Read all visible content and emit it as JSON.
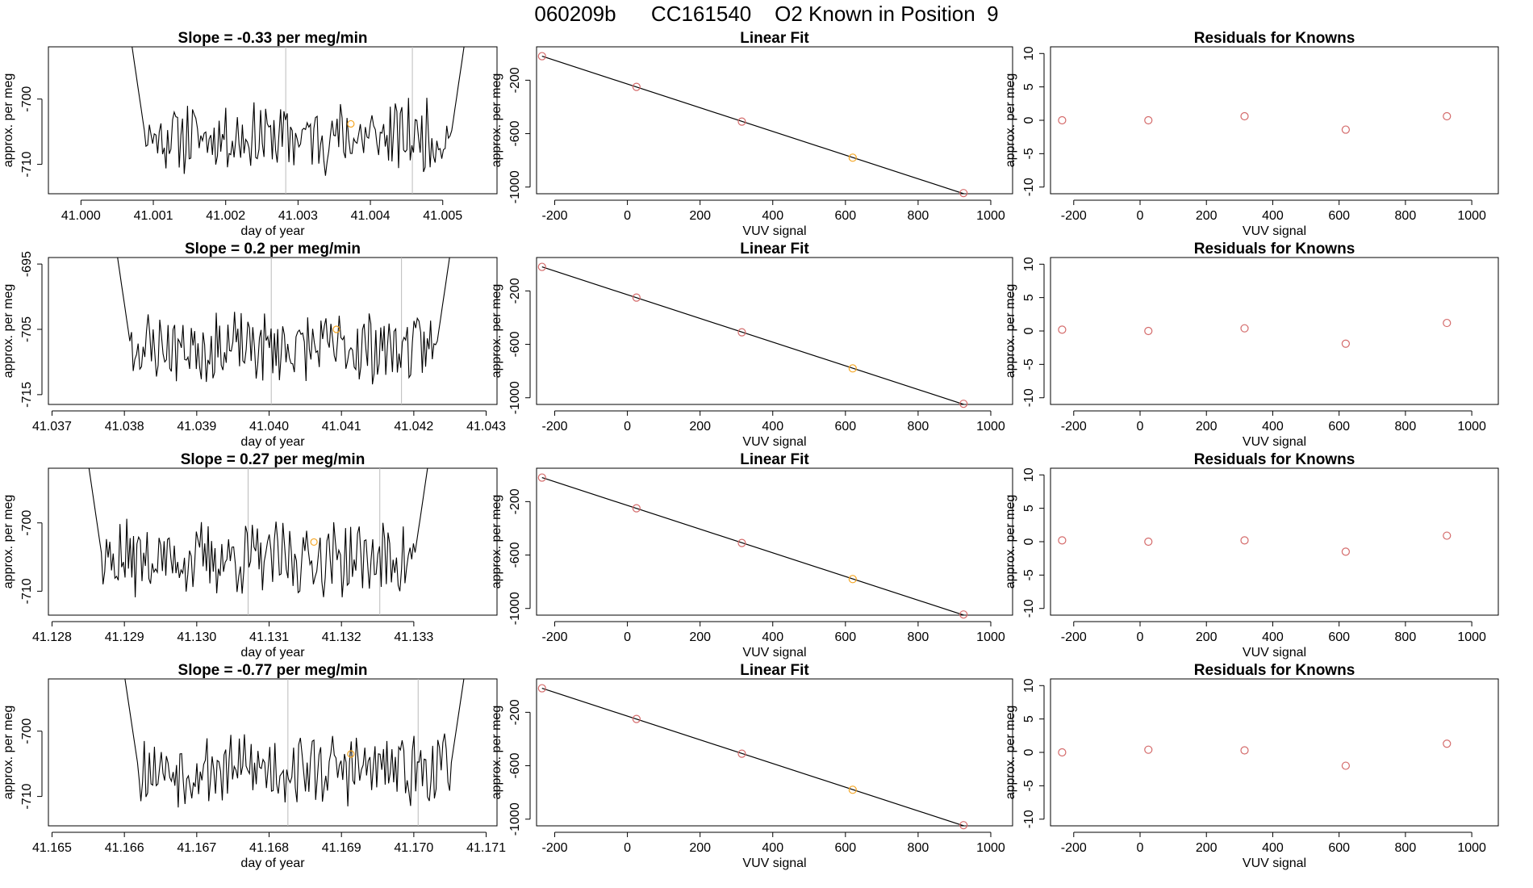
{
  "page": {
    "title": "060209b      CC161540    O2 Known in Position  9"
  },
  "colors": {
    "trace": "#000000",
    "known_point": "#d46a6a",
    "sample_point": "#f5a623",
    "vline": "#bbbbbb",
    "fit_line": "#000000"
  },
  "chart_data": [
    {
      "type": "line",
      "row": 0,
      "title": "Slope =  -0.33  per meg/min",
      "xlabel": "day of year",
      "ylabel": "approx. per meg",
      "xlim": [
        40.99955,
        41.00575
      ],
      "ylim": [
        -714.5,
        -692
      ],
      "xticks": [
        "41.000",
        "41.001",
        "41.002",
        "41.003",
        "41.004",
        "41.005"
      ],
      "xtick_values": [
        41.0,
        41.001,
        41.002,
        41.003,
        41.004,
        41.005
      ],
      "yticks": [
        "-700",
        "-710"
      ],
      "ytick_values": [
        -700,
        -710
      ],
      "x_start": 41.0006,
      "x_end": 41.0054,
      "vlines": [
        41.00283,
        41.00458
      ],
      "marker": {
        "x": 41.00373,
        "y": -703.8
      },
      "seed": 11
    },
    {
      "type": "line",
      "row": 1,
      "title": "Slope =  0.2  per meg/min",
      "xlabel": "day of year",
      "ylabel": "approx. per meg",
      "xlim": [
        41.03695,
        41.04315
      ],
      "ylim": [
        -716.5,
        -694
      ],
      "xticks": [
        "41.037",
        "41.038",
        "41.039",
        "41.040",
        "41.041",
        "41.042",
        "41.043"
      ],
      "xtick_values": [
        41.037,
        41.038,
        41.039,
        41.04,
        41.041,
        41.042,
        41.043
      ],
      "yticks": [
        "-695",
        "-705",
        "-715"
      ],
      "ytick_values": [
        -695,
        -705,
        -715
      ],
      "x_start": 41.0378,
      "x_end": 41.0426,
      "vlines": [
        41.04003,
        41.04183
      ],
      "marker": {
        "x": 41.04093,
        "y": -705.0
      },
      "seed": 23
    },
    {
      "type": "line",
      "row": 2,
      "title": "Slope =  0.27  per meg/min",
      "xlabel": "day of year",
      "ylabel": "approx. per meg",
      "xlim": [
        41.12795,
        41.13415
      ],
      "ylim": [
        -713.5,
        -692
      ],
      "xticks": [
        "41.128",
        "41.129",
        "41.130",
        "41.131",
        "41.132",
        "41.133"
      ],
      "xtick_values": [
        41.128,
        41.129,
        41.13,
        41.131,
        41.132,
        41.133
      ],
      "yticks": [
        "-700",
        "-710"
      ],
      "ytick_values": [
        -700,
        -710
      ],
      "x_start": 41.1284,
      "x_end": 41.1333,
      "vlines": [
        41.13071,
        41.13253
      ],
      "marker": {
        "x": 41.13162,
        "y": -702.8
      },
      "seed": 37
    },
    {
      "type": "line",
      "row": 3,
      "title": "Slope =  -0.77  per meg/min",
      "xlabel": "day of year",
      "ylabel": "approx. per meg",
      "xlim": [
        41.16495,
        41.17115
      ],
      "ylim": [
        -714.5,
        -692
      ],
      "xticks": [
        "41.165",
        "41.166",
        "41.167",
        "41.168",
        "41.169",
        "41.170",
        "41.171"
      ],
      "xtick_values": [
        41.165,
        41.166,
        41.167,
        41.168,
        41.169,
        41.17,
        41.171
      ],
      "yticks": [
        "-700",
        "-710"
      ],
      "ytick_values": [
        -700,
        -710
      ],
      "x_start": 41.1659,
      "x_end": 41.1708,
      "vlines": [
        41.16826,
        41.17006
      ],
      "marker": {
        "x": 41.16913,
        "y": -703.5
      },
      "seed": 53
    },
    {
      "type": "scatter",
      "row": 0,
      "title": "Linear Fit",
      "xlabel": "VUV signal",
      "ylabel": "approx. per meg",
      "xlim": [
        -250,
        1060
      ],
      "ylim": [
        -1050,
        50
      ],
      "xticks": [
        "-200",
        "0",
        "200",
        "400",
        "600",
        "800",
        "1000"
      ],
      "xtick_values": [
        -200,
        0,
        200,
        400,
        600,
        800,
        1000
      ],
      "yticks": [
        "-200",
        "-600",
        "-1000"
      ],
      "ytick_values": [
        -200,
        -600,
        -1000
      ],
      "x": [
        -235,
        25,
        315,
        620,
        925
      ],
      "y": [
        -20,
        -250,
        -510,
        -780,
        -1045
      ],
      "point_kinds": [
        "known",
        "known",
        "known",
        "sample",
        "known"
      ],
      "fit": {
        "x": [
          -235,
          1050
        ],
        "y": [
          -20,
          -1160
        ]
      }
    },
    {
      "type": "scatter",
      "row": 1,
      "title": "Linear Fit",
      "xlabel": "VUV signal",
      "ylabel": "approx. per meg",
      "xlim": [
        -250,
        1060
      ],
      "ylim": [
        -1050,
        50
      ],
      "xticks": [
        "-200",
        "0",
        "200",
        "400",
        "600",
        "800",
        "1000"
      ],
      "xtick_values": [
        -200,
        0,
        200,
        400,
        600,
        800,
        1000
      ],
      "yticks": [
        "-200",
        "-600",
        "-1000"
      ],
      "ytick_values": [
        -200,
        -600,
        -1000
      ],
      "x": [
        -235,
        25,
        315,
        620,
        925
      ],
      "y": [
        -20,
        -250,
        -510,
        -780,
        -1045
      ],
      "point_kinds": [
        "known",
        "known",
        "known",
        "sample",
        "known"
      ],
      "fit": {
        "x": [
          -235,
          1050
        ],
        "y": [
          -20,
          -1160
        ]
      }
    },
    {
      "type": "scatter",
      "row": 2,
      "title": "Linear Fit",
      "xlabel": "VUV signal",
      "ylabel": "approx. per meg",
      "xlim": [
        -250,
        1060
      ],
      "ylim": [
        -1050,
        50
      ],
      "xticks": [
        "-200",
        "0",
        "200",
        "400",
        "600",
        "800",
        "1000"
      ],
      "xtick_values": [
        -200,
        0,
        200,
        400,
        600,
        800,
        1000
      ],
      "yticks": [
        "-200",
        "-600",
        "-1000"
      ],
      "ytick_values": [
        -200,
        -600,
        -1000
      ],
      "x": [
        -235,
        25,
        315,
        620,
        925
      ],
      "y": [
        -20,
        -250,
        -510,
        -780,
        -1045
      ],
      "point_kinds": [
        "known",
        "known",
        "known",
        "sample",
        "known"
      ],
      "fit": {
        "x": [
          -235,
          1050
        ],
        "y": [
          -20,
          -1160
        ]
      }
    },
    {
      "type": "scatter",
      "row": 3,
      "title": "Linear Fit",
      "xlabel": "VUV signal",
      "ylabel": "approx. per meg",
      "xlim": [
        -250,
        1060
      ],
      "ylim": [
        -1050,
        50
      ],
      "xticks": [
        "-200",
        "0",
        "200",
        "400",
        "600",
        "800",
        "1000"
      ],
      "xtick_values": [
        -200,
        0,
        200,
        400,
        600,
        800,
        1000
      ],
      "yticks": [
        "-200",
        "-600",
        "-1000"
      ],
      "ytick_values": [
        -200,
        -600,
        -1000
      ],
      "x": [
        -235,
        25,
        315,
        620,
        925
      ],
      "y": [
        -20,
        -250,
        -510,
        -780,
        -1045
      ],
      "point_kinds": [
        "known",
        "known",
        "known",
        "sample",
        "known"
      ],
      "fit": {
        "x": [
          -235,
          1050
        ],
        "y": [
          -20,
          -1160
        ]
      }
    },
    {
      "type": "scatter",
      "row": 0,
      "title": "Residuals for Knowns",
      "xlabel": "VUV signal",
      "ylabel": "approx. per meg",
      "xlim": [
        -270,
        1080
      ],
      "ylim": [
        -11,
        11
      ],
      "xticks": [
        "-200",
        "0",
        "200",
        "400",
        "600",
        "800",
        "1000"
      ],
      "xtick_values": [
        -200,
        0,
        200,
        400,
        600,
        800,
        1000
      ],
      "yticks": [
        "10",
        "5",
        "0",
        "-5",
        "-10"
      ],
      "ytick_values": [
        10,
        5,
        0,
        -5,
        -10
      ],
      "x": [
        -235,
        25,
        315,
        620,
        925
      ],
      "y": [
        0.0,
        0.0,
        0.6,
        -1.4,
        0.6
      ]
    },
    {
      "type": "scatter",
      "row": 1,
      "title": "Residuals for Knowns",
      "xlabel": "VUV signal",
      "ylabel": "approx. per meg",
      "xlim": [
        -270,
        1080
      ],
      "ylim": [
        -11,
        11
      ],
      "xticks": [
        "-200",
        "0",
        "200",
        "400",
        "600",
        "800",
        "1000"
      ],
      "xtick_values": [
        -200,
        0,
        200,
        400,
        600,
        800,
        1000
      ],
      "yticks": [
        "10",
        "5",
        "0",
        "-5",
        "-10"
      ],
      "ytick_values": [
        10,
        5,
        0,
        -5,
        -10
      ],
      "x": [
        -235,
        25,
        315,
        620,
        925
      ],
      "y": [
        0.2,
        0.0,
        0.4,
        -1.9,
        1.2
      ]
    },
    {
      "type": "scatter",
      "row": 2,
      "title": "Residuals for Knowns",
      "xlabel": "VUV signal",
      "ylabel": "approx. per meg",
      "xlim": [
        -270,
        1080
      ],
      "ylim": [
        -11,
        11
      ],
      "xticks": [
        "-200",
        "0",
        "200",
        "400",
        "600",
        "800",
        "1000"
      ],
      "xtick_values": [
        -200,
        0,
        200,
        400,
        600,
        800,
        1000
      ],
      "yticks": [
        "10",
        "5",
        "0",
        "-5",
        "-10"
      ],
      "ytick_values": [
        10,
        5,
        0,
        -5,
        -10
      ],
      "x": [
        -235,
        25,
        315,
        620,
        925
      ],
      "y": [
        0.2,
        0.0,
        0.2,
        -1.5,
        0.9
      ]
    },
    {
      "type": "scatter",
      "row": 3,
      "title": "Residuals for Knowns",
      "xlabel": "VUV signal",
      "ylabel": "approx. per meg",
      "xlim": [
        -270,
        1080
      ],
      "ylim": [
        -11,
        11
      ],
      "xticks": [
        "-200",
        "0",
        "200",
        "400",
        "600",
        "800",
        "1000"
      ],
      "xtick_values": [
        -200,
        0,
        200,
        400,
        600,
        800,
        1000
      ],
      "yticks": [
        "10",
        "5",
        "0",
        "-5",
        "-10"
      ],
      "ytick_values": [
        10,
        5,
        0,
        -5,
        -10
      ],
      "x": [
        -235,
        25,
        315,
        620,
        925
      ],
      "y": [
        0.0,
        0.4,
        0.3,
        -2.0,
        1.3
      ]
    }
  ]
}
